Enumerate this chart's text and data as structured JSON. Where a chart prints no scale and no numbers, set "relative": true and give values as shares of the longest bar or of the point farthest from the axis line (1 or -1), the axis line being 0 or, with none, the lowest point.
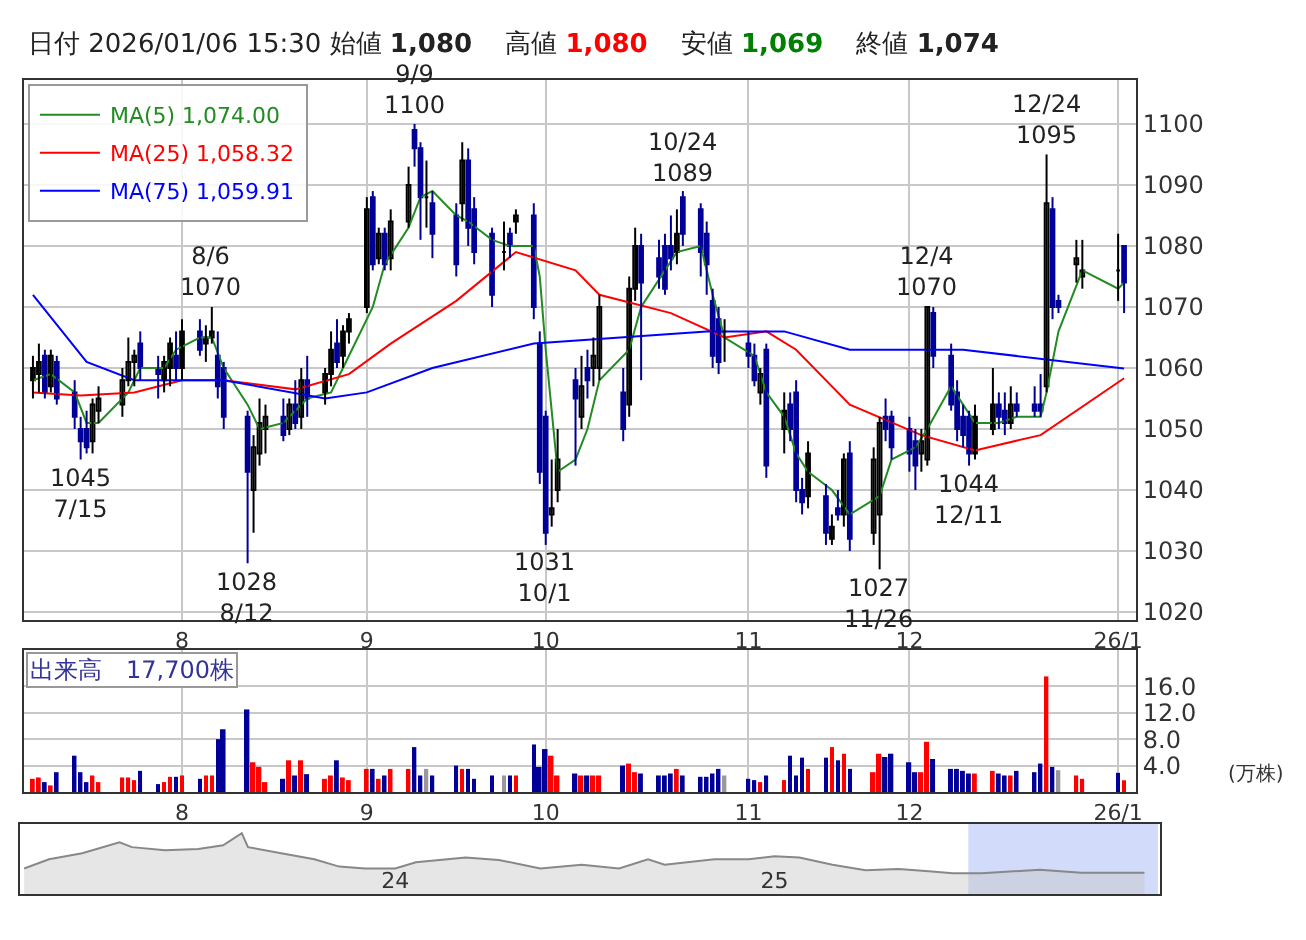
{
  "chart_data": [
    {
      "type": "candlestick",
      "colors": [
        "#000000",
        "#000000",
        "#000099",
        "#000000",
        "#000099",
        "#000099",
        "#000099",
        "#000099",
        "#000000",
        "#000000",
        "#000000",
        "#000000",
        "#000000",
        "#000099",
        "#000099",
        "#000000",
        "#000000",
        "#000099",
        "#000000",
        "#000099",
        "#000000",
        "#000000",
        "#000099",
        "#000099",
        "#000099",
        "#000000",
        "#000000",
        "#000000",
        "#000099",
        "#000000",
        "#000099",
        "#000000",
        "#000099",
        "#000000",
        "#000000",
        "#000099",
        "#000000",
        "#000000",
        "#000000",
        "#000099",
        "#000000",
        "#000099",
        "#000000",
        "#000000",
        "#000099",
        "#000099",
        "#000000",
        "#000099",
        "#000099",
        "#000000",
        "#000099",
        "#000099",
        "#000099",
        "#000000",
        "#000099",
        "#000000",
        "#000099",
        "#000099",
        "#000099",
        "#000000",
        "#000000",
        "#000099",
        "#000000",
        "#000099",
        "#000000",
        "#000000",
        "#000099",
        "#000000",
        "#000000",
        "#000099",
        "#000099",
        "#000099",
        "#000099",
        "#000000",
        "#000099",
        "#000099",
        "#000099",
        "#000099",
        "#000099",
        "#000000",
        "#000099",
        "#000099",
        "#000000",
        "#000099",
        "#000000",
        "#000099",
        "#000099",
        "#000099",
        "#000000",
        "#000099",
        "#000000",
        "#000099",
        "#000000",
        "#000099",
        "#000000",
        "#000000",
        "#000099",
        "#000099",
        "#000099",
        "#000099",
        "#000000",
        "#000000",
        "#000099",
        "#000099",
        "#000099",
        "#000099",
        "#000099",
        "#000000",
        "#000000",
        "#000099",
        "#000099",
        "#000000",
        "#000099",
        "#000099",
        "#000099",
        "#000000",
        "#000099",
        "#000099",
        "#000000",
        "#000000",
        "#000000",
        "#000099"
      ],
      "annotations": [
        "日付 2026/01/06 15:30 始値",
        "1,080",
        "高値",
        "1,080",
        "安値",
        "1,069",
        "終値",
        "1,074",
        {
          "text": "1045\n7/15",
          "x": "2025-07-15",
          "y": 1045
        },
        {
          "text": "8/6\n1070",
          "x": "2025-08-06",
          "y": 1070
        },
        {
          "text": "1028\n8/12",
          "x": "2025-08-12",
          "y": 1028
        },
        {
          "text": "9/9\n1100",
          "x": "2025-09-09",
          "y": 1100
        },
        {
          "text": "1031\n10/1",
          "x": "2025-10-01",
          "y": 1031
        },
        {
          "text": "10/24\n1089",
          "x": "2025-10-24",
          "y": 1089
        },
        {
          "text": "1027\n11/26",
          "x": "2025-11-26",
          "y": 1027
        },
        {
          "text": "12/4\n1070",
          "x": "2025-12-04",
          "y": 1070
        },
        {
          "text": "1044\n12/11",
          "x": "2025-12-11",
          "y": 1044
        },
        {
          "text": "12/24\n1095",
          "x": "2025-12-24",
          "y": 1095
        }
      ],
      "x": [
        "2025-07-07",
        "2025-07-08",
        "2025-07-09",
        "2025-07-10",
        "2025-07-11",
        "2025-07-14",
        "2025-07-15",
        "2025-07-16",
        "2025-07-17",
        "2025-07-18",
        "2025-07-22",
        "2025-07-23",
        "2025-07-24",
        "2025-07-25",
        "2025-07-28",
        "2025-07-29",
        "2025-07-30",
        "2025-07-31",
        "2025-08-01",
        "2025-08-04",
        "2025-08-05",
        "2025-08-06",
        "2025-08-07",
        "2025-08-08",
        "2025-08-12",
        "2025-08-13",
        "2025-08-14",
        "2025-08-15",
        "2025-08-18",
        "2025-08-19",
        "2025-08-20",
        "2025-08-21",
        "2025-08-22",
        "2025-08-25",
        "2025-08-26",
        "2025-08-27",
        "2025-08-28",
        "2025-08-29",
        "2025-09-01",
        "2025-09-02",
        "2025-09-03",
        "2025-09-04",
        "2025-09-05",
        "2025-09-08",
        "2025-09-09",
        "2025-09-10",
        "2025-09-11",
        "2025-09-12",
        "2025-09-16",
        "2025-09-17",
        "2025-09-18",
        "2025-09-19",
        "2025-09-22",
        "2025-09-24",
        "2025-09-25",
        "2025-09-26",
        "2025-09-29",
        "2025-09-30",
        "2025-10-01",
        "2025-10-02",
        "2025-10-03",
        "2025-10-06",
        "2025-10-07",
        "2025-10-08",
        "2025-10-09",
        "2025-10-10",
        "2025-10-14",
        "2025-10-15",
        "2025-10-16",
        "2025-10-17",
        "2025-10-20",
        "2025-10-21",
        "2025-10-22",
        "2025-10-23",
        "2025-10-24",
        "2025-10-27",
        "2025-10-28",
        "2025-10-29",
        "2025-10-30",
        "2025-10-31",
        "2025-11-04",
        "2025-11-05",
        "2025-11-06",
        "2025-11-07",
        "2025-11-10",
        "2025-11-11",
        "2025-11-12",
        "2025-11-13",
        "2025-11-14",
        "2025-11-17",
        "2025-11-18",
        "2025-11-19",
        "2025-11-20",
        "2025-11-21",
        "2025-11-25",
        "2025-11-26",
        "2025-11-27",
        "2025-11-28",
        "2025-12-01",
        "2025-12-02",
        "2025-12-03",
        "2025-12-04",
        "2025-12-05",
        "2025-12-08",
        "2025-12-09",
        "2025-12-10",
        "2025-12-11",
        "2025-12-12",
        "2025-12-15",
        "2025-12-16",
        "2025-12-17",
        "2025-12-18",
        "2025-12-19",
        "2025-12-22",
        "2025-12-23",
        "2025-12-24",
        "2025-12-25",
        "2025-12-26",
        "2025-12-29",
        "2025-12-30",
        "2026-01-05",
        "2026-01-06"
      ],
      "ohlc": [
        [
          1058,
          1062,
          1055,
          1060
        ],
        [
          1059,
          1064,
          1056,
          1061
        ],
        [
          1062,
          1063,
          1055,
          1056
        ],
        [
          1057,
          1063,
          1056,
          1062
        ],
        [
          1061,
          1062,
          1054,
          1055
        ],
        [
          1056,
          1058,
          1050,
          1052
        ],
        [
          1050,
          1052,
          1045,
          1048
        ],
        [
          1050,
          1053,
          1046,
          1047
        ],
        [
          1048,
          1055,
          1046,
          1054
        ],
        [
          1053,
          1057,
          1051,
          1055
        ],
        [
          1054,
          1060,
          1052,
          1058
        ],
        [
          1058,
          1065,
          1057,
          1061
        ],
        [
          1061,
          1063,
          1057,
          1062
        ],
        [
          1064,
          1066,
          1058,
          1060
        ],
        [
          1060,
          1062,
          1055,
          1059
        ],
        [
          1058,
          1062,
          1056,
          1061
        ],
        [
          1060,
          1065,
          1057,
          1064
        ],
        [
          1062,
          1066,
          1058,
          1060
        ],
        [
          1060,
          1068,
          1058,
          1066
        ],
        [
          1066,
          1068,
          1062,
          1063
        ],
        [
          1064,
          1067,
          1061,
          1065
        ],
        [
          1065,
          1070,
          1064,
          1066
        ],
        [
          1062,
          1066,
          1055,
          1057
        ],
        [
          1060,
          1061,
          1050,
          1052
        ],
        [
          1052,
          1053,
          1028,
          1043
        ],
        [
          1040,
          1049,
          1033,
          1047
        ],
        [
          1046,
          1055,
          1044,
          1051
        ],
        [
          1050,
          1054,
          1046,
          1052
        ],
        [
          1052,
          1055,
          1048,
          1049
        ],
        [
          1050,
          1055,
          1049,
          1054
        ],
        [
          1054,
          1058,
          1050,
          1051
        ],
        [
          1052,
          1060,
          1050,
          1058
        ],
        [
          1058,
          1062,
          1052,
          1055
        ],
        [
          1056,
          1060,
          1054,
          1059
        ],
        [
          1059,
          1066,
          1057,
          1063
        ],
        [
          1064,
          1068,
          1060,
          1061
        ],
        [
          1062,
          1067,
          1060,
          1066
        ],
        [
          1066,
          1069,
          1064,
          1068
        ],
        [
          1070,
          1088,
          1069,
          1086
        ],
        [
          1088,
          1089,
          1076,
          1077
        ],
        [
          1078,
          1083,
          1077,
          1082
        ],
        [
          1082,
          1083,
          1076,
          1077
        ],
        [
          1078,
          1086,
          1076,
          1084
        ],
        [
          1084,
          1093,
          1083,
          1090
        ],
        [
          1099,
          1100,
          1093,
          1096
        ],
        [
          1096,
          1097,
          1081,
          1088
        ],
        [
          1088,
          1094,
          1083,
          1088
        ],
        [
          1087,
          1089,
          1078,
          1082
        ],
        [
          1085,
          1087,
          1075,
          1077
        ],
        [
          1087,
          1097,
          1084,
          1094
        ],
        [
          1094,
          1096,
          1080,
          1083
        ],
        [
          1086,
          1088,
          1077,
          1079
        ],
        [
          1082,
          1083,
          1070,
          1072
        ],
        [
          1079,
          1084,
          1076,
          1079
        ],
        [
          1082,
          1083,
          1078,
          1080
        ],
        [
          1084,
          1086,
          1082,
          1085
        ],
        [
          1085,
          1087,
          1068,
          1070
        ],
        [
          1064,
          1066,
          1041,
          1043
        ],
        [
          1052,
          1053,
          1031,
          1033
        ],
        [
          1036,
          1045,
          1034,
          1037
        ],
        [
          1040,
          1050,
          1038,
          1045
        ],
        [
          1058,
          1060,
          1044,
          1055
        ],
        [
          1052,
          1062,
          1050,
          1057
        ],
        [
          1060,
          1063,
          1055,
          1058
        ],
        [
          1060,
          1065,
          1057,
          1062
        ],
        [
          1060,
          1072,
          1058,
          1070
        ],
        [
          1056,
          1060,
          1048,
          1050
        ],
        [
          1054,
          1075,
          1052,
          1073
        ],
        [
          1073,
          1083,
          1071,
          1080
        ],
        [
          1080,
          1082,
          1058,
          1074
        ],
        [
          1078,
          1081,
          1073,
          1075
        ],
        [
          1080,
          1082,
          1072,
          1073
        ],
        [
          1080,
          1085,
          1076,
          1078
        ],
        [
          1079,
          1086,
          1077,
          1082
        ],
        [
          1088,
          1089,
          1080,
          1082
        ],
        [
          1086,
          1087,
          1075,
          1079
        ],
        [
          1082,
          1084,
          1072,
          1077
        ],
        [
          1071,
          1073,
          1060,
          1062
        ],
        [
          1068,
          1070,
          1059,
          1061
        ],
        [
          1066,
          1068,
          1061,
          1066
        ],
        [
          1064,
          1066,
          1060,
          1062
        ],
        [
          1062,
          1064,
          1057,
          1058
        ],
        [
          1056,
          1060,
          1054,
          1059
        ],
        [
          1063,
          1064,
          1042,
          1044
        ],
        [
          1050,
          1056,
          1046,
          1053
        ],
        [
          1054,
          1056,
          1048,
          1050
        ],
        [
          1056,
          1058,
          1038,
          1040
        ],
        [
          1040,
          1042,
          1036,
          1038
        ],
        [
          1039,
          1048,
          1037,
          1046
        ],
        [
          1039,
          1041,
          1031,
          1033
        ],
        [
          1032,
          1036,
          1031,
          1034
        ],
        [
          1037,
          1040,
          1035,
          1036
        ],
        [
          1036,
          1046,
          1034,
          1045
        ],
        [
          1046,
          1048,
          1030,
          1032
        ],
        [
          1033,
          1047,
          1031,
          1045
        ],
        [
          1036,
          1052,
          1027,
          1051
        ],
        [
          1052,
          1055,
          1048,
          1050
        ],
        [
          1052,
          1053,
          1045,
          1047
        ],
        [
          1050,
          1052,
          1043,
          1046
        ],
        [
          1048,
          1050,
          1040,
          1044
        ],
        [
          1046,
          1050,
          1043,
          1048
        ],
        [
          1045,
          1070,
          1044,
          1070
        ],
        [
          1069,
          1070,
          1060,
          1062
        ],
        [
          1062,
          1064,
          1053,
          1054
        ],
        [
          1056,
          1058,
          1048,
          1050
        ],
        [
          1052,
          1054,
          1047,
          1049
        ],
        [
          1052,
          1053,
          1044,
          1046
        ],
        [
          1046,
          1054,
          1045,
          1052
        ],
        [
          1050,
          1060,
          1049,
          1054
        ],
        [
          1054,
          1056,
          1050,
          1052
        ],
        [
          1053,
          1056,
          1049,
          1051
        ],
        [
          1051,
          1057,
          1050,
          1054
        ],
        [
          1054,
          1056,
          1052,
          1053
        ],
        [
          1054,
          1057,
          1052,
          1053
        ],
        [
          1054,
          1059,
          1052,
          1053
        ],
        [
          1057,
          1095,
          1056,
          1087
        ],
        [
          1086,
          1088,
          1068,
          1070
        ],
        [
          1071,
          1072,
          1069,
          1070
        ],
        [
          1077,
          1081,
          1074,
          1078
        ],
        [
          1075,
          1081,
          1073,
          1076
        ],
        [
          1076,
          1082,
          1071,
          1076
        ],
        [
          1080,
          1080,
          1069,
          1074
        ]
      ],
      "series": [
        {
          "name": "MA(5) 1,074.00",
          "type": "line",
          "color": "#228b22",
          "x": [
            "2025-07-07",
            "2025-07-10",
            "2025-07-14",
            "2025-07-16",
            "2025-07-18",
            "2025-07-23",
            "2025-07-25",
            "2025-07-29",
            "2025-07-31",
            "2025-08-04",
            "2025-08-06",
            "2025-08-08",
            "2025-08-12",
            "2025-08-14",
            "2025-08-18",
            "2025-08-20",
            "2025-08-22",
            "2025-08-26",
            "2025-08-28",
            "2025-08-29",
            "2025-09-02",
            "2025-09-04",
            "2025-09-08",
            "2025-09-10",
            "2025-09-12",
            "2025-09-16",
            "2025-09-18",
            "2025-09-22",
            "2025-09-25",
            "2025-09-29",
            "2025-09-30",
            "2025-10-01",
            "2025-10-03",
            "2025-10-06",
            "2025-10-08",
            "2025-10-10",
            "2025-10-15",
            "2025-10-17",
            "2025-10-21",
            "2025-10-23",
            "2025-10-27",
            "2025-10-29",
            "2025-10-31",
            "2025-11-05",
            "2025-11-07",
            "2025-11-10",
            "2025-11-12",
            "2025-11-14",
            "2025-11-18",
            "2025-11-21",
            "2025-11-26",
            "2025-11-28",
            "2025-12-02",
            "2025-12-04",
            "2025-12-08",
            "2025-12-10",
            "2025-12-12",
            "2025-12-16",
            "2025-12-19",
            "2025-12-23",
            "2025-12-24",
            "2025-12-26",
            "2025-12-30",
            "2026-01-05",
            "2026-01-06"
          ],
          "values": [
            1058,
            1059,
            1056,
            1051,
            1051,
            1056,
            1060,
            1060,
            1063,
            1065,
            1065,
            1060,
            1054,
            1050,
            1051,
            1053,
            1055,
            1056,
            1060,
            1062,
            1070,
            1077,
            1083,
            1088,
            1089,
            1085,
            1084,
            1081,
            1080,
            1080,
            1075,
            1063,
            1043,
            1045,
            1050,
            1058,
            1063,
            1070,
            1076,
            1079,
            1080,
            1072,
            1065,
            1062,
            1056,
            1052,
            1046,
            1043,
            1040,
            1036,
            1039,
            1045,
            1047,
            1050,
            1057,
            1054,
            1051,
            1051,
            1052,
            1052,
            1056,
            1066,
            1076,
            1073,
            1074
          ]
        },
        {
          "name": "MA(25) 1,058.32",
          "type": "line",
          "color": "#ff0000",
          "x": [
            "2025-07-07",
            "2025-07-15",
            "2025-07-24",
            "2025-08-01",
            "2025-08-08",
            "2025-08-20",
            "2025-08-29",
            "2025-09-05",
            "2025-09-16",
            "2025-09-26",
            "2025-10-06",
            "2025-10-10",
            "2025-10-22",
            "2025-10-31",
            "2025-11-07",
            "2025-11-12",
            "2025-11-21",
            "2025-12-03",
            "2025-12-12",
            "2025-12-23",
            "2026-01-06"
          ],
          "values": [
            1056,
            1055.5,
            1056,
            1058,
            1058,
            1056.5,
            1059,
            1064,
            1071,
            1079,
            1076,
            1072,
            1069,
            1065,
            1066,
            1063,
            1054,
            1049,
            1046.5,
            1049,
            1058.32
          ]
        },
        {
          "name": "MA(75) 1,059.91",
          "type": "line",
          "color": "#0000ff",
          "x": [
            "2025-07-07",
            "2025-07-16",
            "2025-07-24",
            "2025-08-08",
            "2025-08-25",
            "2025-09-01",
            "2025-09-12",
            "2025-09-29",
            "2025-10-28",
            "2025-11-10",
            "2025-11-21",
            "2025-12-10",
            "2026-01-06"
          ],
          "values": [
            1072,
            1061,
            1058,
            1058,
            1055,
            1056,
            1060,
            1064,
            1066,
            1066,
            1063,
            1063,
            1059.91
          ]
        }
      ],
      "xlim": [
        "2025-07-05T12:00",
        "2026-01-08T00:00"
      ],
      "xticks": [
        {
          "value": "2025-08-01",
          "label": "8"
        },
        {
          "value": "2025-09-01",
          "label": "9"
        },
        {
          "value": "2025-10-01",
          "label": "10"
        },
        {
          "value": "2025-11-04",
          "label": "11"
        },
        {
          "value": "2025-12-01",
          "label": "12"
        },
        {
          "value": "2026-01-05",
          "label": "26/1"
        }
      ],
      "ylim": [
        1018.7,
        1107.2
      ],
      "yticks": [
        1020,
        1030,
        1040,
        1050,
        1060,
        1070,
        1080,
        1090,
        1100
      ],
      "grid": true,
      "legend": "top left"
    },
    {
      "type": "bar",
      "title": "出来高　17,700株",
      "ylabel": "(万株)",
      "x": [
        "2025-07-07",
        "2025-07-08",
        "2025-07-09",
        "2025-07-10",
        "2025-07-11",
        "2025-07-14",
        "2025-07-15",
        "2025-07-16",
        "2025-07-17",
        "2025-07-18",
        "2025-07-22",
        "2025-07-23",
        "2025-07-24",
        "2025-07-25",
        "2025-07-28",
        "2025-07-29",
        "2025-07-30",
        "2025-07-31",
        "2025-08-01",
        "2025-08-04",
        "2025-08-05",
        "2025-08-06",
        "2025-08-07",
        "2025-08-08",
        "2025-08-12",
        "2025-08-13",
        "2025-08-14",
        "2025-08-15",
        "2025-08-18",
        "2025-08-19",
        "2025-08-20",
        "2025-08-21",
        "2025-08-22",
        "2025-08-25",
        "2025-08-26",
        "2025-08-27",
        "2025-08-28",
        "2025-08-29",
        "2025-09-01",
        "2025-09-02",
        "2025-09-03",
        "2025-09-04",
        "2025-09-05",
        "2025-09-08",
        "2025-09-09",
        "2025-09-10",
        "2025-09-11",
        "2025-09-12",
        "2025-09-16",
        "2025-09-17",
        "2025-09-18",
        "2025-09-19",
        "2025-09-22",
        "2025-09-24",
        "2025-09-25",
        "2025-09-26",
        "2025-09-29",
        "2025-09-30",
        "2025-10-01",
        "2025-10-02",
        "2025-10-03",
        "2025-10-06",
        "2025-10-07",
        "2025-10-08",
        "2025-10-09",
        "2025-10-10",
        "2025-10-14",
        "2025-10-15",
        "2025-10-16",
        "2025-10-17",
        "2025-10-20",
        "2025-10-21",
        "2025-10-22",
        "2025-10-23",
        "2025-10-24",
        "2025-10-27",
        "2025-10-28",
        "2025-10-29",
        "2025-10-30",
        "2025-10-31",
        "2025-11-04",
        "2025-11-05",
        "2025-11-06",
        "2025-11-07",
        "2025-11-10",
        "2025-11-11",
        "2025-11-12",
        "2025-11-13",
        "2025-11-14",
        "2025-11-17",
        "2025-11-18",
        "2025-11-19",
        "2025-11-20",
        "2025-11-21",
        "2025-11-25",
        "2025-11-26",
        "2025-11-27",
        "2025-11-28",
        "2025-12-01",
        "2025-12-02",
        "2025-12-03",
        "2025-12-04",
        "2025-12-05",
        "2025-12-08",
        "2025-12-09",
        "2025-12-10",
        "2025-12-11",
        "2025-12-12",
        "2025-12-15",
        "2025-12-16",
        "2025-12-17",
        "2025-12-18",
        "2025-12-19",
        "2025-12-22",
        "2025-12-23",
        "2025-12-24",
        "2025-12-25",
        "2025-12-26",
        "2025-12-29",
        "2025-12-30",
        "2026-01-05",
        "2026-01-06"
      ],
      "values": [
        2.0,
        2.2,
        1.5,
        1.0,
        3.0,
        5.5,
        3.0,
        1.5,
        2.5,
        1.5,
        2.2,
        2.2,
        1.8,
        3.2,
        1.2,
        1.5,
        2.3,
        2.3,
        2.5,
        2.0,
        2.5,
        2.5,
        8.0,
        9.5,
        12.5,
        4.5,
        3.8,
        1.5,
        2.0,
        4.8,
        2.5,
        4.8,
        2.7,
        2.0,
        2.5,
        4.8,
        2.2,
        1.8,
        3.5,
        3.5,
        2.0,
        2.5,
        3.5,
        3.5,
        6.8,
        2.5,
        3.5,
        2.5,
        4.0,
        3.5,
        3.5,
        2.0,
        2.5,
        2.5,
        2.5,
        2.5,
        7.2,
        3.8,
        6.5,
        5.5,
        2.5,
        2.8,
        2.5,
        2.5,
        2.5,
        2.5,
        4.0,
        4.3,
        3.0,
        2.8,
        2.5,
        2.5,
        2.8,
        3.5,
        2.5,
        2.3,
        2.3,
        2.8,
        3.5,
        2.5,
        2.0,
        1.8,
        1.5,
        2.5,
        1.8,
        5.5,
        2.5,
        5.2,
        3.5,
        5.2,
        6.8,
        4.8,
        5.8,
        3.5,
        3.0,
        5.8,
        5.3,
        5.8,
        4.5,
        3.0,
        3.0,
        7.6,
        5.0,
        3.5,
        3.5,
        3.2,
        2.8,
        2.8,
        3.2,
        2.8,
        2.5,
        2.5,
        3.2,
        3.0,
        4.3,
        17.5,
        3.8,
        3.3,
        2.5,
        2.0,
        2.9,
        1.77
      ],
      "colors": [
        "#ff0000",
        "#ff0000",
        "#000099",
        "#ff0000",
        "#000099",
        "#000099",
        "#000099",
        "#000099",
        "#ff0000",
        "#ff0000",
        "#ff0000",
        "#ff0000",
        "#ff0000",
        "#000099",
        "#000099",
        "#ff0000",
        "#ff0000",
        "#000099",
        "#ff0000",
        "#000099",
        "#ff0000",
        "#ff0000",
        "#000099",
        "#000099",
        "#000099",
        "#ff0000",
        "#ff0000",
        "#ff0000",
        "#000099",
        "#ff0000",
        "#000099",
        "#ff0000",
        "#000099",
        "#ff0000",
        "#ff0000",
        "#000099",
        "#ff0000",
        "#ff0000",
        "#ff0000",
        "#000099",
        "#ff0000",
        "#000099",
        "#ff0000",
        "#ff0000",
        "#000099",
        "#000099",
        "#999999",
        "#000099",
        "#000099",
        "#ff0000",
        "#000099",
        "#000099",
        "#000099",
        "#999999",
        "#000099",
        "#ff0000",
        "#000099",
        "#000099",
        "#000099",
        "#ff0000",
        "#ff0000",
        "#000099",
        "#ff0000",
        "#000099",
        "#ff0000",
        "#ff0000",
        "#000099",
        "#ff0000",
        "#ff0000",
        "#000099",
        "#000099",
        "#000099",
        "#000099",
        "#ff0000",
        "#000099",
        "#000099",
        "#000099",
        "#000099",
        "#000099",
        "#999999",
        "#000099",
        "#000099",
        "#ff0000",
        "#000099",
        "#ff0000",
        "#000099",
        "#000099",
        "#000099",
        "#ff0000",
        "#000099",
        "#ff0000",
        "#000099",
        "#ff0000",
        "#000099",
        "#ff0000",
        "#ff0000",
        "#000099",
        "#000099",
        "#000099",
        "#000099",
        "#ff0000",
        "#ff0000",
        "#000099",
        "#000099",
        "#000099",
        "#000099",
        "#000099",
        "#ff0000",
        "#ff0000",
        "#000099",
        "#000099",
        "#ff0000",
        "#000099",
        "#000099",
        "#000099",
        "#ff0000",
        "#000099",
        "#999999",
        "#ff0000",
        "#ff0000",
        "#000099",
        "#ff0000"
      ],
      "xlim": [
        "2025-07-05T12:00",
        "2026-01-08T00:00"
      ],
      "xticks": [
        {
          "value": "2025-08-01",
          "label": "8"
        },
        {
          "value": "2025-09-01",
          "label": "9"
        },
        {
          "value": "2025-10-01",
          "label": "10"
        },
        {
          "value": "2025-11-04",
          "label": "11"
        },
        {
          "value": "2025-12-01",
          "label": "12"
        },
        {
          "value": "2026-01-05",
          "label": "26/1"
        }
      ],
      "ylim": [
        0,
        21.5
      ],
      "yticks": [
        {
          "value": 4,
          "label": "4.0"
        },
        {
          "value": 8,
          "label": "8.0"
        },
        {
          "value": 12,
          "label": "12.0"
        },
        {
          "value": 16,
          "label": "16.0"
        }
      ],
      "grid": true
    },
    {
      "type": "area",
      "relative": true,
      "color": "#888888",
      "tick_labels": "x",
      "x": [
        "2023-01-08",
        "2023-02-01",
        "2023-03-05",
        "2023-04-10",
        "2023-04-22",
        "2023-05-24",
        "2023-06-25",
        "2023-07-19",
        "2023-08-06",
        "2023-08-12",
        "2023-09-13",
        "2023-10-15",
        "2023-11-08",
        "2023-12-03",
        "2024-01-01",
        "2024-01-21",
        "2024-03-09",
        "2024-04-10",
        "2024-05-20",
        "2024-06-29",
        "2024-08-04",
        "2024-09-01",
        "2024-09-17",
        "2024-11-04",
        "2024-12-07",
        "2025-01-01",
        "2025-01-25",
        "2025-02-26",
        "2025-03-30",
        "2025-05-01",
        "2025-06-02",
        "2025-06-22",
        "2025-07-20",
        "2025-09-14",
        "2025-10-24",
        "2025-12-24"
      ],
      "values": [
        0.42,
        0.57,
        0.67,
        0.85,
        0.77,
        0.72,
        0.74,
        0.8,
        1,
        0.77,
        0.67,
        0.57,
        0.45,
        0.42,
        0.42,
        0.52,
        0.6,
        0.56,
        0.42,
        0.48,
        0.42,
        0.57,
        0.48,
        0.57,
        0.57,
        0.62,
        0.6,
        0.48,
        0.39,
        0.41,
        0.37,
        0.34,
        0.34,
        0.4,
        0.35,
        0.35
      ],
      "xlim": [
        "2023-01-04",
        "2026-01-08"
      ],
      "xticks": [
        {
          "value": "2024-01-01",
          "label": "24"
        },
        {
          "value": "2025-01-01",
          "label": "25"
        }
      ],
      "bands": [
        {
          "axis": "x",
          "from": "2025-07-07",
          "to": "2026-01-06",
          "color": "#b4c3f5"
        }
      ]
    }
  ]
}
